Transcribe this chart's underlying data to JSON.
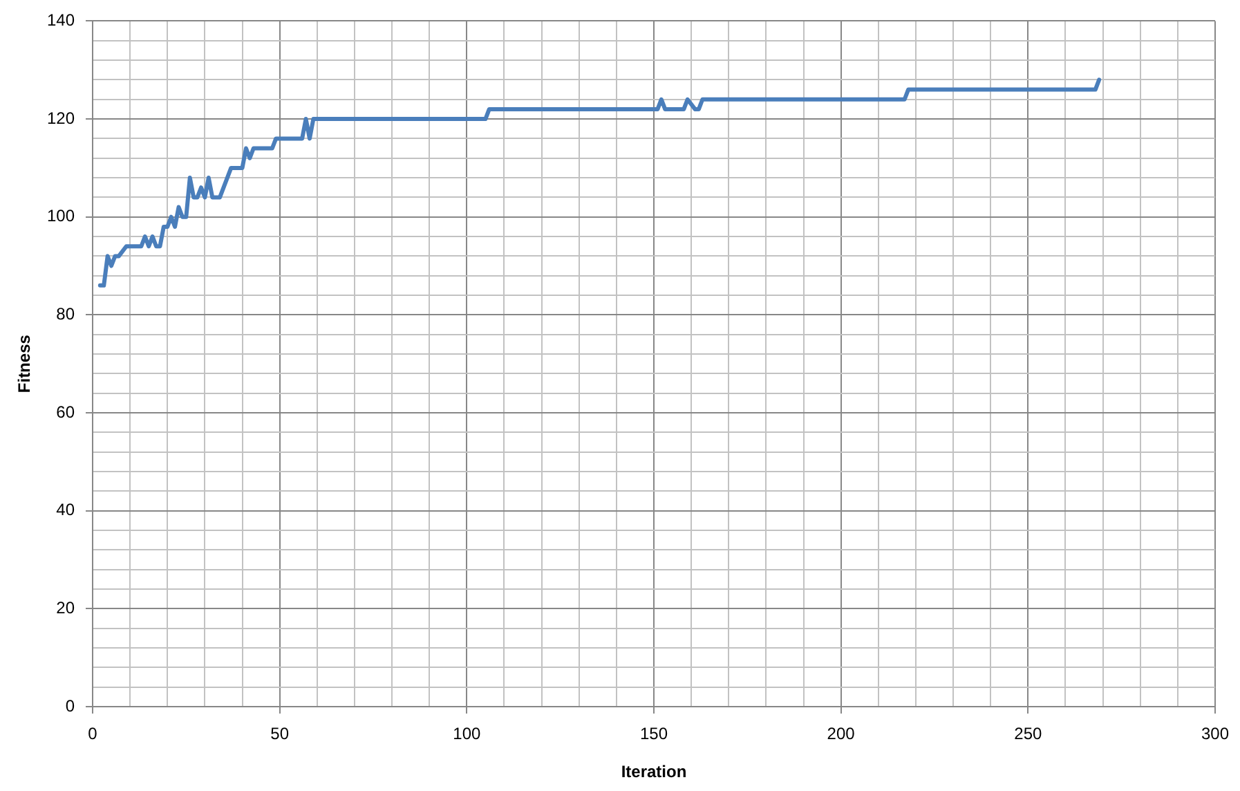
{
  "chart_data": {
    "type": "line",
    "xlabel": "Iteration",
    "ylabel": "Fitness",
    "x": [
      2,
      3,
      4,
      5,
      6,
      7,
      9,
      13,
      14,
      15,
      16,
      17,
      18,
      19,
      20,
      21,
      22,
      23,
      24,
      25,
      26,
      27,
      28,
      29,
      30,
      31,
      32,
      34,
      37,
      40,
      41,
      42,
      43,
      48,
      49,
      56,
      57,
      58,
      59,
      105,
      106,
      151,
      152,
      153,
      158,
      159,
      161,
      162,
      163,
      217,
      218,
      268,
      269
    ],
    "series": [
      {
        "color": "#4a7ebb",
        "values": [
          86,
          86,
          92,
          90,
          92,
          92,
          94,
          94,
          96,
          94,
          96,
          94,
          94,
          98,
          98,
          100,
          98,
          102,
          100,
          100,
          108,
          104,
          104,
          106,
          104,
          108,
          104,
          104,
          110,
          110,
          114,
          112,
          114,
          114,
          116,
          116,
          120,
          116,
          120,
          120,
          122,
          122,
          124,
          122,
          122,
          124,
          122,
          122,
          124,
          124,
          126,
          126,
          128
        ]
      }
    ],
    "xlim": [
      0,
      300
    ],
    "xticks": [
      0,
      {
        "value": 10,
        "label": null
      },
      {
        "value": 20,
        "label": null
      },
      {
        "value": 30,
        "label": null
      },
      {
        "value": 40,
        "label": null
      },
      50,
      {
        "value": 60,
        "label": null
      },
      {
        "value": 70,
        "label": null
      },
      {
        "value": 80,
        "label": null
      },
      {
        "value": 90,
        "label": null
      },
      100,
      {
        "value": 110,
        "label": null
      },
      {
        "value": 120,
        "label": null
      },
      {
        "value": 130,
        "label": null
      },
      {
        "value": 140,
        "label": null
      },
      150,
      {
        "value": 160,
        "label": null
      },
      {
        "value": 170,
        "label": null
      },
      {
        "value": 180,
        "label": null
      },
      {
        "value": 190,
        "label": null
      },
      200,
      {
        "value": 210,
        "label": null
      },
      {
        "value": 220,
        "label": null
      },
      {
        "value": 230,
        "label": null
      },
      {
        "value": 240,
        "label": null
      },
      250,
      {
        "value": 260,
        "label": null
      },
      {
        "value": 270,
        "label": null
      },
      {
        "value": 280,
        "label": null
      },
      {
        "value": 290,
        "label": null
      },
      300
    ],
    "ylim": [
      0,
      140
    ],
    "yticks": [
      0,
      {
        "value": 4,
        "label": null
      },
      {
        "value": 8,
        "label": null
      },
      {
        "value": 12,
        "label": null
      },
      {
        "value": 16,
        "label": null
      },
      20,
      {
        "value": 24,
        "label": null
      },
      {
        "value": 28,
        "label": null
      },
      {
        "value": 32,
        "label": null
      },
      {
        "value": 36,
        "label": null
      },
      40,
      {
        "value": 44,
        "label": null
      },
      {
        "value": 48,
        "label": null
      },
      {
        "value": 52,
        "label": null
      },
      {
        "value": 56,
        "label": null
      },
      60,
      {
        "value": 64,
        "label": null
      },
      {
        "value": 68,
        "label": null
      },
      {
        "value": 72,
        "label": null
      },
      {
        "value": 76,
        "label": null
      },
      80,
      {
        "value": 84,
        "label": null
      },
      {
        "value": 88,
        "label": null
      },
      {
        "value": 92,
        "label": null
      },
      {
        "value": 96,
        "label": null
      },
      100,
      {
        "value": 104,
        "label": null
      },
      {
        "value": 108,
        "label": null
      },
      {
        "value": 112,
        "label": null
      },
      {
        "value": 116,
        "label": null
      },
      120,
      {
        "value": 124,
        "label": null
      },
      {
        "value": 128,
        "label": null
      },
      {
        "value": 132,
        "label": null
      },
      {
        "value": 136,
        "label": null
      },
      140
    ],
    "grid": true,
    "legend": false,
    "marker": "none",
    "line_style": "solid"
  }
}
